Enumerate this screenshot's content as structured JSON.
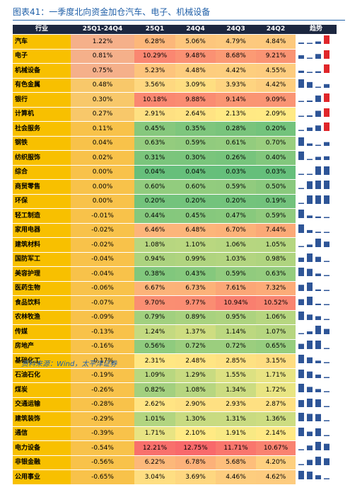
{
  "header": {
    "title": "图表41：一季度北向资金加仓汽车、电子、机械设备"
  },
  "table": {
    "columns": [
      "行业",
      "25Q1-24Q4",
      "25Q1",
      "24Q4",
      "24Q3",
      "24Q2",
      "趋势"
    ],
    "rows": [
      [
        "汽车",
        "1.22%",
        "6.28%",
        "5.06%",
        "4.79%",
        "4.84%"
      ],
      [
        "电子",
        "0.81%",
        "10.29%",
        "9.48%",
        "8.68%",
        "9.21%"
      ],
      [
        "机械设备",
        "0.75%",
        "5.23%",
        "4.48%",
        "4.42%",
        "4.55%"
      ],
      [
        "有色金属",
        "0.48%",
        "3.56%",
        "3.09%",
        "3.93%",
        "4.42%"
      ],
      [
        "银行",
        "0.30%",
        "10.18%",
        "9.88%",
        "9.14%",
        "9.09%"
      ],
      [
        "计算机",
        "0.27%",
        "2.91%",
        "2.64%",
        "2.13%",
        "2.09%"
      ],
      [
        "社会服务",
        "0.11%",
        "0.45%",
        "0.35%",
        "0.28%",
        "0.20%"
      ],
      [
        "钢铁",
        "0.04%",
        "0.63%",
        "0.59%",
        "0.61%",
        "0.70%"
      ],
      [
        "纺织服饰",
        "0.02%",
        "0.31%",
        "0.30%",
        "0.26%",
        "0.40%"
      ],
      [
        "综合",
        "0.00%",
        "0.04%",
        "0.04%",
        "0.03%",
        "0.03%"
      ],
      [
        "商贸零售",
        "0.00%",
        "0.60%",
        "0.60%",
        "0.59%",
        "0.50%"
      ],
      [
        "环保",
        "0.00%",
        "0.20%",
        "0.20%",
        "0.20%",
        "0.19%"
      ],
      [
        "轻工制造",
        "-0.01%",
        "0.44%",
        "0.45%",
        "0.47%",
        "0.59%"
      ],
      [
        "家用电器",
        "-0.02%",
        "6.46%",
        "6.48%",
        "6.70%",
        "7.44%"
      ],
      [
        "建筑材料",
        "-0.02%",
        "1.08%",
        "1.10%",
        "1.06%",
        "1.05%"
      ],
      [
        "国防军工",
        "-0.04%",
        "0.94%",
        "0.99%",
        "1.03%",
        "0.98%"
      ],
      [
        "美容护理",
        "-0.04%",
        "0.38%",
        "0.43%",
        "0.59%",
        "0.63%"
      ],
      [
        "医药生物",
        "-0.06%",
        "6.67%",
        "6.73%",
        "7.61%",
        "7.32%"
      ],
      [
        "食品饮料",
        "-0.07%",
        "9.70%",
        "9.77%",
        "10.94%",
        "10.52%"
      ],
      [
        "农林牧渔",
        "-0.09%",
        "0.79%",
        "0.89%",
        "0.95%",
        "1.06%"
      ],
      [
        "传媒",
        "-0.13%",
        "1.24%",
        "1.37%",
        "1.14%",
        "1.07%"
      ],
      [
        "房地产",
        "-0.16%",
        "0.56%",
        "0.72%",
        "0.72%",
        "0.65%"
      ],
      [
        "基础化工",
        "-0.17%",
        "2.31%",
        "2.48%",
        "2.85%",
        "3.15%"
      ],
      [
        "石油石化",
        "-0.19%",
        "1.09%",
        "1.29%",
        "1.55%",
        "1.71%"
      ],
      [
        "煤炭",
        "-0.26%",
        "0.82%",
        "1.08%",
        "1.34%",
        "1.72%"
      ],
      [
        "交通运输",
        "-0.28%",
        "2.62%",
        "2.90%",
        "2.93%",
        "2.87%"
      ],
      [
        "建筑装饰",
        "-0.29%",
        "1.01%",
        "1.30%",
        "1.31%",
        "1.36%"
      ],
      [
        "通信",
        "-0.39%",
        "1.71%",
        "2.10%",
        "1.91%",
        "2.14%"
      ],
      [
        "电力设备",
        "-0.54%",
        "12.21%",
        "12.75%",
        "11.71%",
        "10.67%"
      ],
      [
        "非银金融",
        "-0.56%",
        "6.22%",
        "6.78%",
        "5.68%",
        "4.20%"
      ],
      [
        "公用事业",
        "-0.65%",
        "3.04%",
        "3.69%",
        "4.46%",
        "4.62%"
      ]
    ]
  },
  "footer": {
    "source": "资料来源：Wind，太平洋证券"
  }
}
